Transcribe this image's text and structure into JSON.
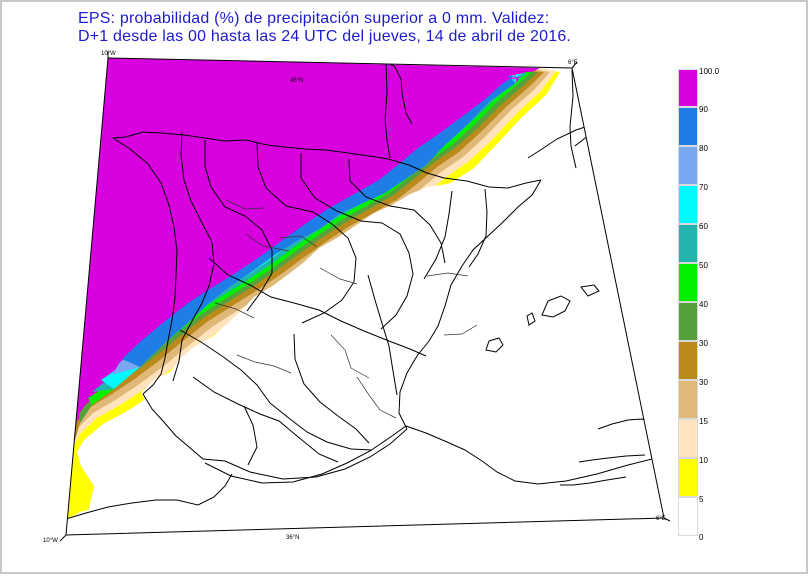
{
  "title": {
    "line1": "EPS: probabilidad (%) de precipitación superior a 0 mm.  Validez:",
    "line2": "D+1 desde las 00 hasta las 24 UTC del jueves, 14 de abril de 2016."
  },
  "coords": {
    "top_left": "10°W",
    "top_center": "45°N",
    "top_right": "6°E",
    "bottom_left": "10°W",
    "bottom_center": "36°N",
    "bottom_right": "6°E"
  },
  "legend": {
    "bands": [
      {
        "label": "100.0",
        "color": "#d900e0"
      },
      {
        "label": "90",
        "color": "#1f7de7"
      },
      {
        "label": "80",
        "color": "#78a8f2"
      },
      {
        "label": "70",
        "color": "#00fbff"
      },
      {
        "label": "60",
        "color": "#23b5ad"
      },
      {
        "label": "50",
        "color": "#00f000"
      },
      {
        "label": "40",
        "color": "#57a13d"
      },
      {
        "label": "30",
        "color": "#ba8a1c"
      },
      {
        "label": "30",
        "color": "#e0b978"
      },
      {
        "label": "15",
        "color": "#ffe3bd"
      },
      {
        "label": "10",
        "color": "#ffff00"
      },
      {
        "label": "5",
        "color": "#ffffff"
      }
    ],
    "bottom_label": "0"
  }
}
